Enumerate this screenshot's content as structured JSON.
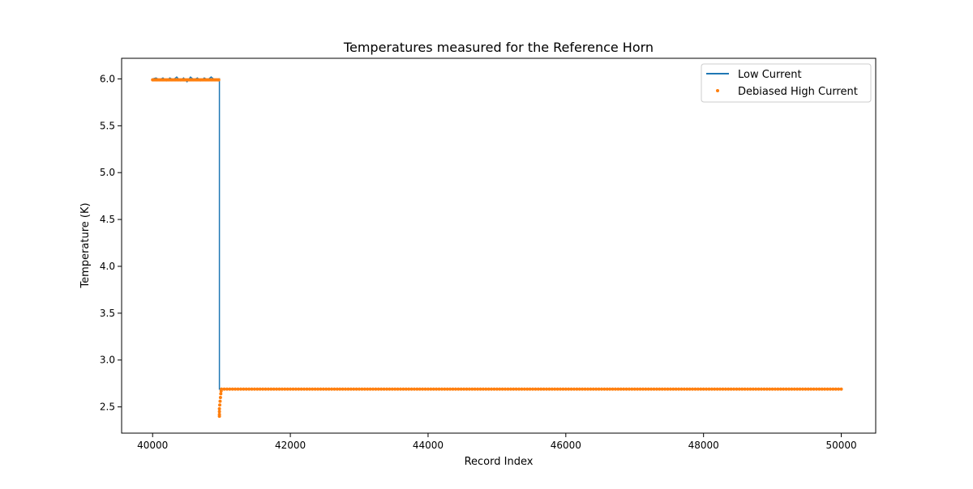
{
  "chart_data": {
    "type": "line",
    "title": "Temperatures measured for the Reference Horn",
    "xlabel": "Record Index",
    "ylabel": "Temperature (K)",
    "xlim": [
      39550,
      50500
    ],
    "ylim": [
      2.22,
      6.22
    ],
    "x_ticks": [
      40000,
      42000,
      44000,
      46000,
      48000,
      50000
    ],
    "x_tick_labels": [
      "40000",
      "42000",
      "44000",
      "46000",
      "48000",
      "50000"
    ],
    "y_ticks": [
      2.5,
      3.0,
      3.5,
      4.0,
      4.5,
      5.0,
      5.5,
      6.0
    ],
    "y_tick_labels": [
      "2.5",
      "3.0",
      "3.5",
      "4.0",
      "4.5",
      "5.0",
      "5.5",
      "6.0"
    ],
    "grid": false,
    "legend_position": "top-right",
    "series": [
      {
        "name": "Low Current",
        "style": "line",
        "color": "#1f77b4",
        "points": [
          [
            40000,
            6.0
          ],
          [
            40050,
            6.01
          ],
          [
            40100,
            5.99
          ],
          [
            40150,
            6.01
          ],
          [
            40200,
            5.98
          ],
          [
            40250,
            6.01
          ],
          [
            40300,
            5.99
          ],
          [
            40350,
            6.02
          ],
          [
            40400,
            5.98
          ],
          [
            40450,
            6.01
          ],
          [
            40500,
            5.97
          ],
          [
            40550,
            6.02
          ],
          [
            40600,
            5.99
          ],
          [
            40650,
            6.01
          ],
          [
            40700,
            5.98
          ],
          [
            40750,
            6.01
          ],
          [
            40800,
            5.99
          ],
          [
            40850,
            6.02
          ],
          [
            40900,
            5.99
          ],
          [
            40970,
            6.0
          ],
          [
            40970,
            2.69
          ],
          [
            50000,
            2.69
          ]
        ]
      },
      {
        "name": "Debiased High Current",
        "style": "scatter",
        "color": "#ff7f0e",
        "segments": [
          {
            "x_start": 40000,
            "x_end": 40970,
            "y": 5.99,
            "step": 16
          },
          {
            "x_start": 41000,
            "x_end": 50000,
            "y": 2.69,
            "step": 40
          }
        ],
        "points": [
          [
            40970,
            2.4
          ],
          [
            40970,
            2.42
          ],
          [
            40970,
            2.45
          ],
          [
            40970,
            2.48
          ],
          [
            40975,
            2.52
          ],
          [
            40980,
            2.56
          ],
          [
            40985,
            2.6
          ],
          [
            40990,
            2.64
          ],
          [
            40995,
            2.67
          ]
        ]
      }
    ]
  }
}
